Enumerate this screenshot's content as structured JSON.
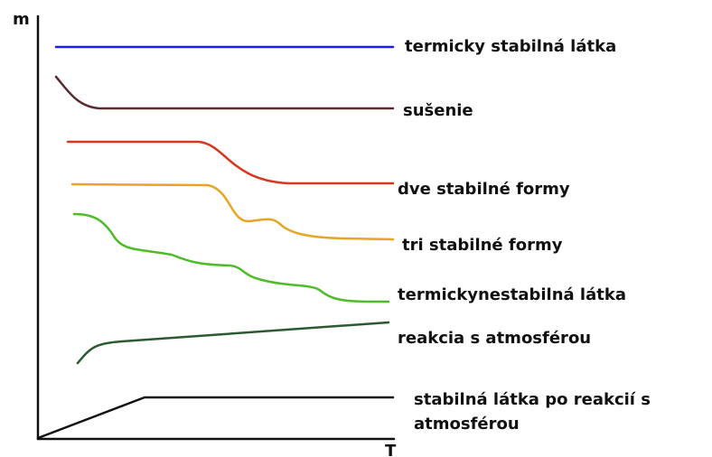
{
  "axes": {
    "y_label": "m",
    "x_label": "T"
  },
  "curves": [
    {
      "label": "termicky stabilná látka"
    },
    {
      "label": "sušenie"
    },
    {
      "label": "dve stabilné formy"
    },
    {
      "label": "tri stabilné formy"
    },
    {
      "label": "termickynestabilná látka"
    },
    {
      "label": "reakcia s atmosférou"
    },
    {
      "label": "stabilná látka po reakcií s",
      "label_line2": "atmosférou"
    }
  ]
}
